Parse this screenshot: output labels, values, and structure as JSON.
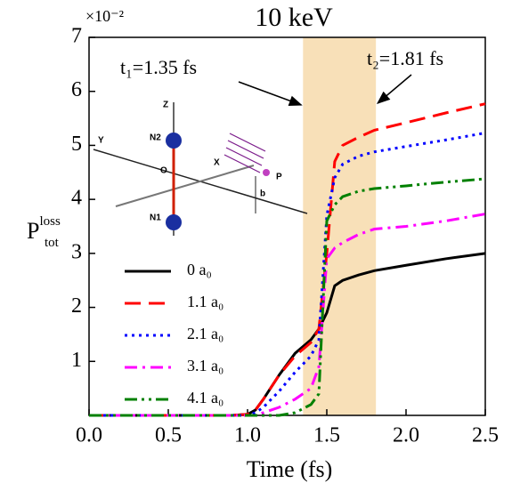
{
  "chart_data": {
    "type": "line",
    "title": "10 keV",
    "xlabel": "Time (fs)",
    "ylabel": {
      "main": "P",
      "sup": "loss",
      "sub": "tot"
    },
    "y_multiplier": "×10⁻²",
    "x": [
      0,
      0.9,
      1.0,
      1.05,
      1.1,
      1.2,
      1.3,
      1.4,
      1.45,
      1.5,
      1.55,
      1.6,
      1.7,
      1.8,
      2.0,
      2.25,
      2.5
    ],
    "series": [
      {
        "name": "0 a₀",
        "color": "#000000",
        "dash": "solid",
        "width": 3,
        "values": [
          0,
          0,
          0.02,
          0.1,
          0.3,
          0.75,
          1.15,
          1.4,
          1.6,
          1.9,
          2.4,
          2.5,
          2.6,
          2.68,
          2.78,
          2.9,
          3.0
        ]
      },
      {
        "name": "1.1 a₀",
        "color": "#ff0000",
        "dash": "dash",
        "width": 3,
        "values": [
          0,
          0,
          0.02,
          0.1,
          0.3,
          0.75,
          1.1,
          1.35,
          1.6,
          3.0,
          4.7,
          5.0,
          5.15,
          5.28,
          5.42,
          5.6,
          5.77
        ]
      },
      {
        "name": "2.1 a₀",
        "color": "#0000ff",
        "dash": "dot",
        "width": 3,
        "values": [
          0,
          0,
          0,
          0.05,
          0.15,
          0.45,
          0.8,
          1.1,
          1.4,
          3.7,
          4.4,
          4.65,
          4.8,
          4.88,
          4.98,
          5.1,
          5.23
        ]
      },
      {
        "name": "3.1 a₀",
        "color": "#ff00ff",
        "dash": "dashdot",
        "width": 3,
        "values": [
          0,
          0,
          0,
          0,
          0.05,
          0.15,
          0.3,
          0.5,
          0.9,
          2.9,
          3.1,
          3.2,
          3.35,
          3.45,
          3.5,
          3.6,
          3.73
        ]
      },
      {
        "name": "4.1 a₀",
        "color": "#008000",
        "dash": "dashdotdot",
        "width": 3,
        "values": [
          0,
          0,
          0,
          0,
          0,
          0,
          0.05,
          0.2,
          0.4,
          3.6,
          3.9,
          4.05,
          4.15,
          4.2,
          4.25,
          4.32,
          4.38
        ]
      }
    ],
    "xlim": [
      0,
      2.5
    ],
    "ylim": [
      0,
      7
    ],
    "xticks": [
      {
        "value": 0,
        "label": "0.0"
      },
      0.5,
      {
        "value": 1,
        "label": "1.0"
      },
      1.5,
      {
        "value": 2,
        "label": "2.0"
      },
      2.5
    ],
    "yticks": [
      1,
      2,
      3,
      4,
      5,
      6,
      7
    ],
    "shade": {
      "range": [
        1.35,
        1.81
      ],
      "color": "#f8e0b8"
    },
    "annotations": [
      "t₁=1.35 fs",
      "t₂=1.81 fs"
    ],
    "inset": {
      "labels": [
        "Z",
        "Y",
        "X",
        "O",
        "N2",
        "N1",
        "P",
        "b"
      ]
    }
  }
}
